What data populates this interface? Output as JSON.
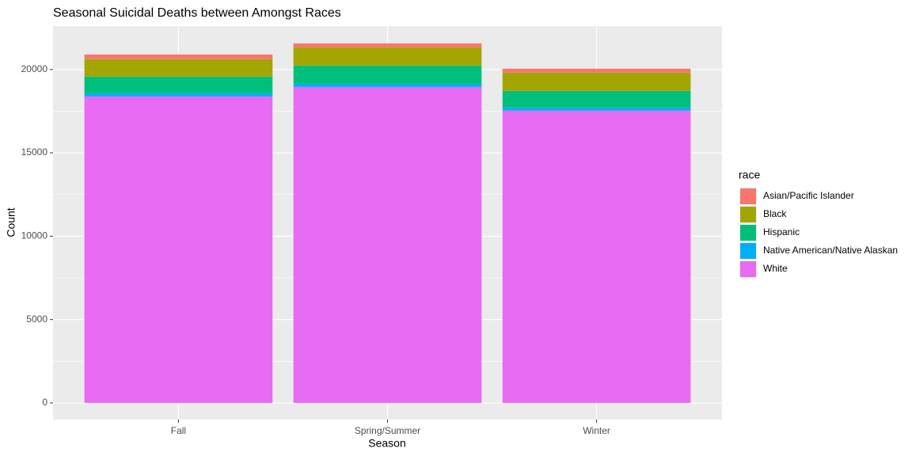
{
  "chart_data": {
    "type": "stacked_bar",
    "title": "Seasonal Suicidal Deaths between Amongst Races",
    "xlabel": "Season",
    "ylabel": "Count",
    "legend_title": "race",
    "categories": [
      "Fall",
      "Spring/Summer",
      "Winter"
    ],
    "series": [
      {
        "name": "Asian/Pacific Islander",
        "color": "#F8766D",
        "values": [
          285,
          235,
          235
        ]
      },
      {
        "name": "Black",
        "color": "#A3A500",
        "values": [
          1045,
          1095,
          1095
        ]
      },
      {
        "name": "Hispanic",
        "color": "#00BF7D",
        "values": [
          1000,
          1095,
          995
        ]
      },
      {
        "name": "Native American/Native Alaskan",
        "color": "#00B0F6",
        "values": [
          190,
          190,
          190
        ]
      },
      {
        "name": "White",
        "color": "#E76BF3",
        "values": [
          18380,
          18950,
          17530
        ]
      }
    ],
    "ylim": [
      -1000,
      22600
    ],
    "yticks": [
      0,
      5000,
      10000,
      15000,
      20000
    ],
    "grid": true
  }
}
